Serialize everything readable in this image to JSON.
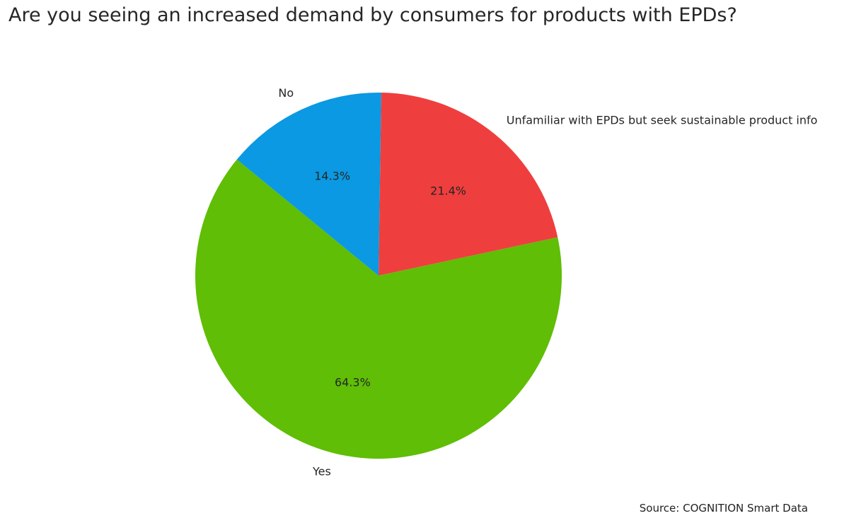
{
  "chart_data": {
    "type": "pie",
    "title": "Are you seeing an increased demand by consumers for products with EPDs?",
    "slices": [
      {
        "label": "Unfamiliar with EPDs but seek sustainable product info",
        "value": 21.4,
        "value_label": "21.4%",
        "color": "#ef3e3e"
      },
      {
        "label": "Yes",
        "value": 64.3,
        "value_label": "64.3%",
        "color": "#5fbe05"
      },
      {
        "label": "No",
        "value": 14.3,
        "value_label": "14.3%",
        "color": "#0a99e2"
      }
    ],
    "direction": "clockwise",
    "start": "top",
    "source": "Source: COGNITION Smart Data"
  }
}
